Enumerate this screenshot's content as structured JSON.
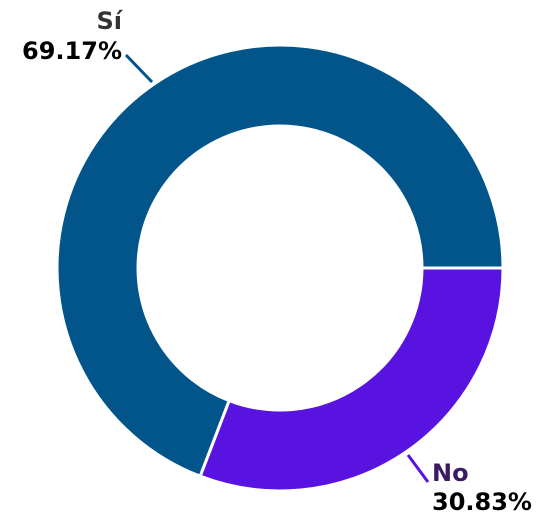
{
  "chart_data": {
    "type": "donut",
    "categories": [
      "Sí",
      "No"
    ],
    "values": [
      69.17,
      30.83
    ],
    "value_labels": [
      "69.17%",
      "30.83%"
    ],
    "colors": [
      "#02558b",
      "#5913e0"
    ]
  }
}
